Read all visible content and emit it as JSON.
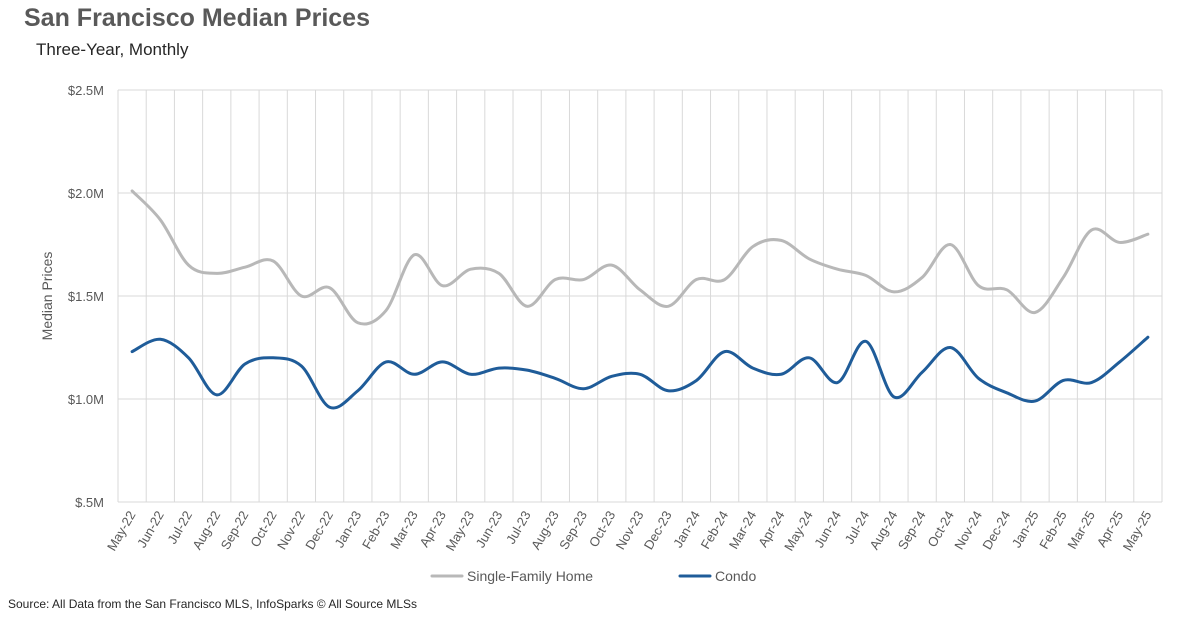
{
  "chart_data": {
    "type": "line",
    "title": "San Francisco Median Prices",
    "subtitle": "Three-Year, Monthly",
    "xlabel": "",
    "ylabel": "Median Prices",
    "ylim": [
      500000,
      2500000
    ],
    "y_ticks": [
      500000,
      1000000,
      1500000,
      2000000,
      2500000
    ],
    "y_tick_labels": [
      "$.5M",
      "$1.0M",
      "$1.5M",
      "$2.0M",
      "$2.5M"
    ],
    "grid": true,
    "legend_position": "bottom",
    "categories": [
      "May-22",
      "Jun-22",
      "Jul-22",
      "Aug-22",
      "Sep-22",
      "Oct-22",
      "Nov-22",
      "Dec-22",
      "Jan-23",
      "Feb-23",
      "Mar-23",
      "Apr-23",
      "May-23",
      "Jun-23",
      "Jul-23",
      "Aug-23",
      "Sep-23",
      "Oct-23",
      "Nov-23",
      "Dec-23",
      "Jan-24",
      "Feb-24",
      "Mar-24",
      "Apr-24",
      "May-24",
      "Jun-24",
      "Jul-24",
      "Aug-24",
      "Sep-24",
      "Oct-24",
      "Nov-24",
      "Dec-24",
      "Jan-25",
      "Feb-25",
      "Mar-25",
      "Apr-25",
      "May-25"
    ],
    "series": [
      {
        "name": "Single-Family Home",
        "color": "#b8b8b8",
        "values": [
          2010000,
          1870000,
          1650000,
          1610000,
          1640000,
          1670000,
          1500000,
          1540000,
          1370000,
          1430000,
          1700000,
          1550000,
          1630000,
          1610000,
          1450000,
          1580000,
          1580000,
          1650000,
          1530000,
          1450000,
          1580000,
          1580000,
          1740000,
          1770000,
          1680000,
          1630000,
          1600000,
          1520000,
          1590000,
          1750000,
          1550000,
          1530000,
          1420000,
          1590000,
          1820000,
          1760000,
          1800000
        ]
      },
      {
        "name": "Condo",
        "color": "#1f5c99",
        "values": [
          1230000,
          1290000,
          1200000,
          1020000,
          1170000,
          1200000,
          1160000,
          960000,
          1040000,
          1180000,
          1120000,
          1180000,
          1120000,
          1150000,
          1140000,
          1100000,
          1050000,
          1110000,
          1120000,
          1040000,
          1090000,
          1230000,
          1150000,
          1120000,
          1200000,
          1080000,
          1280000,
          1010000,
          1130000,
          1250000,
          1100000,
          1030000,
          990000,
          1090000,
          1080000,
          1180000,
          1300000
        ]
      }
    ]
  },
  "source": "Source: All Data from the San Francisco MLS, InfoSparks © All Source MLSs"
}
